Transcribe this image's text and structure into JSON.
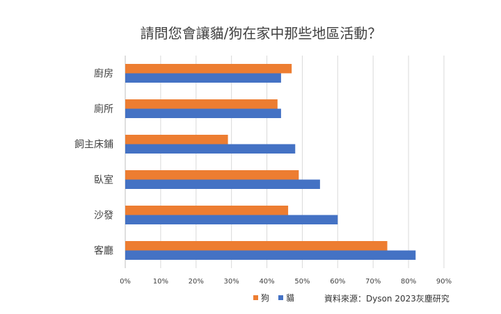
{
  "chart_data": {
    "type": "bar",
    "orientation": "horizontal",
    "title": "請問您會讓貓/狗在家中那些地區活動？",
    "categories": [
      "廚房",
      "廁所",
      "飼主床鋪",
      "臥室",
      "沙發",
      "客廳"
    ],
    "series": [
      {
        "name": "狗",
        "color": "#ED7D31",
        "values": [
          47,
          43,
          29,
          49,
          46,
          74
        ]
      },
      {
        "name": "貓",
        "color": "#4472C4",
        "values": [
          44,
          44,
          48,
          55,
          60,
          82
        ]
      }
    ],
    "xlim": [
      0,
      90
    ],
    "xticks": [
      "0%",
      "10%",
      "20%",
      "30%",
      "40%",
      "50%",
      "60%",
      "70%",
      "80%",
      "90%"
    ],
    "grid": true,
    "legend_position": "bottom"
  },
  "source": "資料來源：Dyson 2023灰塵研究"
}
